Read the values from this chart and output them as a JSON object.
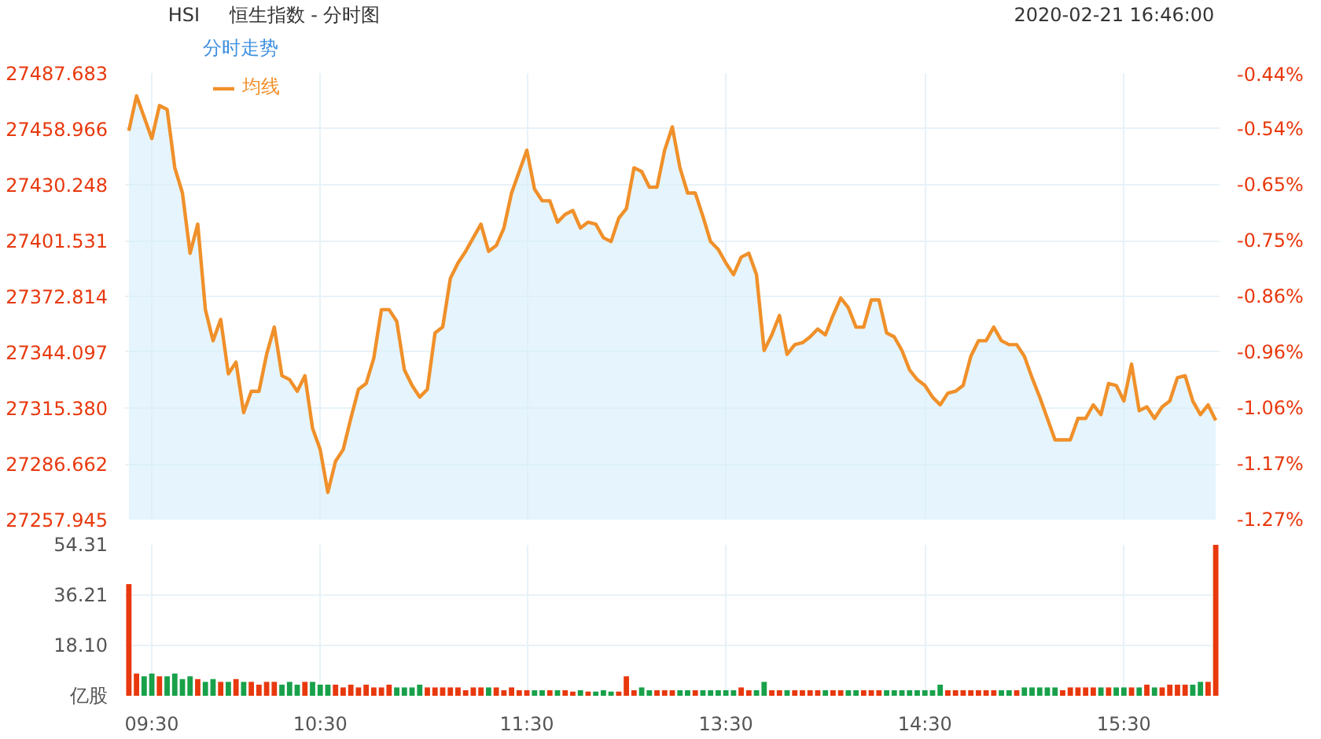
{
  "chart_data": [
    {
      "type": "area",
      "title": "恒生指数 - 分时图",
      "annotations": [
        "HSI",
        "2020-02-21 16:46:00",
        "分时走势"
      ],
      "categories": [
        null,
        null,
        null,
        null,
        null,
        null,
        null,
        null,
        null,
        null,
        null,
        null,
        null,
        null,
        null,
        null,
        null,
        null,
        null,
        null,
        null,
        null,
        null,
        null,
        null,
        null,
        null,
        null,
        null,
        null,
        null,
        null,
        null,
        null,
        null,
        null,
        null,
        null,
        null,
        null,
        null,
        null,
        null,
        null,
        null,
        null,
        null,
        null,
        null,
        null,
        null,
        null,
        null,
        null,
        null,
        null,
        null,
        null,
        null,
        null,
        null,
        null,
        null,
        null,
        null,
        null,
        null,
        null,
        null,
        null,
        null,
        null,
        null,
        null,
        null,
        null,
        null,
        null,
        null,
        null,
        null,
        null,
        null,
        null,
        null,
        null,
        null,
        null,
        null,
        null,
        null,
        null,
        null,
        null,
        null,
        null,
        null,
        null,
        null,
        null,
        null,
        null,
        null,
        null,
        null,
        null,
        null,
        null,
        null,
        null,
        null,
        null,
        null,
        null,
        null,
        null,
        null,
        null,
        null,
        null,
        null,
        null,
        null,
        null,
        null,
        null,
        null,
        null,
        null,
        null,
        null,
        null,
        null,
        null,
        null,
        null,
        null,
        null,
        null,
        null,
        null,
        null,
        null
      ],
      "series": [
        {
          "name": "均线",
          "color": "#f0902a",
          "values": [
            27458,
            27476,
            27465,
            27454,
            27471,
            27469,
            27439,
            27426,
            27395,
            27410,
            27366,
            27350,
            27361,
            27333,
            27339,
            27313,
            27324,
            27324,
            27343,
            27357,
            27332,
            27330,
            27324,
            27332,
            27305,
            27294,
            27272,
            27288,
            27294,
            27310,
            27325,
            27328,
            27341,
            27366,
            27366,
            27360,
            27335,
            27327,
            27321,
            27325,
            27354,
            27357,
            27382,
            27390,
            27396,
            27403,
            27410,
            27396,
            27399,
            27408,
            27426,
            27437,
            27448,
            27428,
            27422,
            27422,
            27411,
            27415,
            27417,
            27408,
            27411,
            27410,
            27403,
            27401,
            27413,
            27418,
            27439,
            27437,
            27429,
            27429,
            27448,
            27460,
            27439,
            27426,
            27426,
            27414,
            27401,
            27397,
            27390,
            27384,
            27393,
            27395,
            27384,
            27345,
            27353,
            27363,
            27343,
            27348,
            27349,
            27352,
            27356,
            27353,
            27363,
            27372,
            27367,
            27357,
            27357,
            27371,
            27371,
            27354,
            27352,
            27345,
            27335,
            27330,
            27327,
            27321,
            27317,
            27323,
            27324,
            27327,
            27342,
            27350,
            27350,
            27357,
            27350,
            27348,
            27348,
            27342,
            27331,
            27321,
            27310,
            27299,
            27299,
            27299,
            27310,
            27310,
            27317,
            27312,
            27328,
            27327,
            27319,
            27338,
            27314,
            27316,
            27310,
            27316,
            27319,
            27331,
            27332,
            27319,
            27312,
            27317,
            27309
          ]
        }
      ],
      "ylim": [
        27257.945,
        27487.683
      ],
      "yticks": [
        27257.945,
        27286.662,
        {
          "value": 27315.38,
          "label": "27315.380"
        },
        27344.097,
        27372.814,
        27401.531,
        27430.248,
        27458.966,
        27487.683
      ],
      "y2lim": [
        -1.2695,
        -0.4412
      ],
      "y2ticks": [
        {
          "value": -1.2695,
          "label": "-1.27%"
        },
        {
          "value": -1.166,
          "label": "-1.17%"
        },
        {
          "value": -1.0624,
          "label": "-1.06%"
        },
        {
          "value": -0.9589,
          "label": "-0.96%"
        },
        {
          "value": -0.8554,
          "label": "-0.86%"
        },
        {
          "value": -0.7518,
          "label": "-0.75%"
        },
        {
          "value": -0.6483,
          "label": "-0.65%"
        },
        {
          "value": -0.5447,
          "label": "-0.54%"
        },
        {
          "value": -0.4412,
          "label": "-0.44%"
        }
      ],
      "grid": true,
      "legend": "top left",
      "tick_labels": "y"
    },
    {
      "type": "bar",
      "categories": [
        null,
        null,
        null,
        "09:30",
        null,
        null,
        null,
        null,
        null,
        null,
        null,
        null,
        null,
        null,
        null,
        null,
        null,
        null,
        null,
        null,
        null,
        null,
        null,
        null,
        null,
        "10:30",
        null,
        null,
        null,
        null,
        null,
        null,
        null,
        null,
        null,
        null,
        null,
        null,
        null,
        null,
        null,
        null,
        null,
        null,
        null,
        null,
        null,
        null,
        null,
        null,
        null,
        null,
        "11:30",
        null,
        null,
        null,
        null,
        null,
        null,
        null,
        null,
        null,
        null,
        null,
        null,
        null,
        null,
        null,
        null,
        null,
        null,
        null,
        null,
        null,
        null,
        null,
        null,
        null,
        "13:30",
        null,
        null,
        null,
        null,
        null,
        null,
        null,
        null,
        null,
        null,
        null,
        null,
        null,
        null,
        null,
        null,
        null,
        null,
        null,
        null,
        null,
        null,
        null,
        null,
        null,
        "14:30",
        null,
        null,
        null,
        null,
        null,
        null,
        null,
        null,
        null,
        null,
        null,
        null,
        null,
        null,
        null,
        null,
        null,
        null,
        null,
        null,
        null,
        null,
        null,
        null,
        null,
        "15:30",
        null,
        null,
        null,
        null,
        null,
        null,
        null,
        null,
        null,
        null,
        null,
        null
      ],
      "values": [
        40.2,
        8,
        7,
        8,
        7,
        7,
        8,
        6,
        7,
        6,
        5,
        6,
        5,
        5,
        6,
        5,
        5,
        4,
        5,
        5,
        4,
        5,
        4,
        5,
        5,
        4,
        4,
        4,
        3,
        4,
        3,
        4,
        3,
        3,
        4,
        3,
        3,
        3,
        4,
        3,
        3,
        3,
        3,
        3,
        2,
        3,
        3,
        3,
        3,
        2,
        3,
        2,
        2,
        2,
        2,
        2,
        2,
        2,
        1.5,
        2,
        1.5,
        1.5,
        2,
        1.5,
        1.5,
        7,
        2,
        3,
        2,
        2,
        2,
        2,
        2,
        2,
        2,
        2,
        2,
        2,
        2,
        2,
        3,
        2,
        2,
        5,
        2,
        2,
        2,
        2,
        2,
        2,
        2,
        2,
        2,
        2,
        2,
        2,
        2,
        2,
        2,
        2,
        2,
        2,
        2,
        2,
        2,
        2,
        4,
        2,
        2,
        2,
        2,
        2,
        2,
        2,
        2,
        2,
        2,
        3,
        3,
        3,
        3,
        3,
        2,
        3,
        3,
        3,
        3,
        3,
        3,
        3,
        3,
        3,
        3,
        4,
        3,
        3,
        4,
        4,
        4,
        4,
        5,
        5,
        54.3
      ],
      "colors": [
        "#e8380d",
        "#e8380d",
        "#18a14a",
        "#18a14a",
        "#e8380d",
        "#18a14a",
        "#18a14a",
        "#18a14a",
        "#18a14a",
        "#e8380d",
        "#18a14a",
        "#18a14a",
        "#e8380d",
        "#18a14a",
        "#e8380d",
        "#18a14a",
        "#e8380d",
        "#e8380d",
        "#e8380d",
        "#e8380d",
        "#18a14a",
        "#18a14a",
        "#18a14a",
        "#e8380d",
        "#18a14a",
        "#18a14a",
        "#18a14a",
        "#e8380d",
        "#e8380d",
        "#e8380d",
        "#e8380d",
        "#e8380d",
        "#e8380d",
        "#e8380d",
        "#e8380d",
        "#18a14a",
        "#18a14a",
        "#18a14a",
        "#18a14a",
        "#e8380d",
        "#e8380d",
        "#e8380d",
        "#e8380d",
        "#e8380d",
        "#e8380d",
        "#e8380d",
        "#e8380d",
        "#18a14a",
        "#e8380d",
        "#e8380d",
        "#e8380d",
        "#e8380d",
        "#e8380d",
        "#18a14a",
        "#18a14a",
        "#e8380d",
        "#18a14a",
        "#e8380d",
        "#e8380d",
        "#18a14a",
        "#e8380d",
        "#18a14a",
        "#18a14a",
        "#18a14a",
        "#e8380d",
        "#e8380d",
        "#e8380d",
        "#18a14a",
        "#18a14a",
        "#e8380d",
        "#e8380d",
        "#e8380d",
        "#18a14a",
        "#18a14a",
        "#e8380d",
        "#18a14a",
        "#18a14a",
        "#18a14a",
        "#18a14a",
        "#18a14a",
        "#e8380d",
        "#e8380d",
        "#18a14a",
        "#18a14a",
        "#e8380d",
        "#e8380d",
        "#18a14a",
        "#e8380d",
        "#e8380d",
        "#e8380d",
        "#e8380d",
        "#18a14a",
        "#e8380d",
        "#e8380d",
        "#18a14a",
        "#18a14a",
        "#e8380d",
        "#e8380d",
        "#e8380d",
        "#18a14a",
        "#18a14a",
        "#18a14a",
        "#18a14a",
        "#18a14a",
        "#18a14a",
        "#18a14a",
        "#18a14a",
        "#e8380d",
        "#e8380d",
        "#e8380d",
        "#e8380d",
        "#e8380d",
        "#e8380d",
        "#e8380d",
        "#18a14a",
        "#18a14a",
        "#e8380d",
        "#18a14a",
        "#18a14a",
        "#18a14a",
        "#18a14a",
        "#18a14a",
        "#e8380d",
        "#e8380d",
        "#e8380d",
        "#e8380d",
        "#e8380d",
        "#18a14a",
        "#e8380d",
        "#18a14a",
        "#18a14a",
        "#e8380d",
        "#18a14a",
        "#e8380d",
        "#18a14a",
        "#e8380d",
        "#e8380d",
        "#e8380d",
        "#e8380d",
        "#18a14a",
        "#18a14a",
        "#e8380d",
        "#e8380d"
      ],
      "ylim": [
        0,
        54.31
      ],
      "yticks": [
        {
          "value": 0,
          "label": "亿股"
        },
        {
          "value": 18.1,
          "label": "18.10"
        },
        36.21,
        54.31
      ],
      "grid": true
    }
  ]
}
